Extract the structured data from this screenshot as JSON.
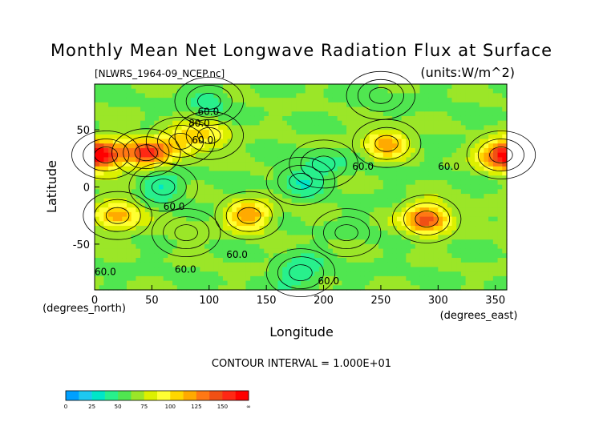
{
  "chart_data": {
    "type": "heatmap",
    "title": "Monthly Mean Net Longwave Radiation Flux at Surface",
    "source_label": "[NLWRS_1964-09_NCEP.nc]",
    "units_label": "(units:W/m^2)",
    "xlabel": "Longitude",
    "ylabel": "Latitude",
    "x_unit_label": "(degrees_east)",
    "y_unit_label": "(degrees_north)",
    "xlim": [
      0,
      360
    ],
    "ylim": [
      -90,
      90
    ],
    "x_ticks": [
      0,
      50,
      100,
      150,
      200,
      250,
      300,
      350
    ],
    "y_ticks": [
      50,
      0,
      -50
    ],
    "contour_interval_text": "CONTOUR INTERVAL = 1.000E+01",
    "contour_labels": [
      "60.0",
      "80.0",
      "60.0",
      "60.0",
      "60.0",
      "60.0",
      "60.0",
      "60.0",
      "60.0",
      "60.0"
    ],
    "colorbar": {
      "ticks": [
        "0",
        "25",
        "50",
        "75",
        "100",
        "125",
        "150",
        "∞"
      ],
      "colors": [
        "#00a0ff",
        "#1ec8f0",
        "#00e6c8",
        "#28f08c",
        "#50e650",
        "#9be628",
        "#dcf000",
        "#ffff32",
        "#ffd700",
        "#ffaa00",
        "#ff7814",
        "#f05014",
        "#ff2814",
        "#ff0000"
      ],
      "boundaries": [
        0,
        12.5,
        25,
        37.5,
        50,
        62.5,
        75,
        87.5,
        100,
        112.5,
        125,
        137.5,
        150,
        162.5
      ]
    },
    "regions": [
      {
        "lon": 10,
        "lat": 28,
        "value": 130
      },
      {
        "lon": 45,
        "lat": 30,
        "value": 145
      },
      {
        "lon": 75,
        "lat": 40,
        "value": 105
      },
      {
        "lon": 100,
        "lat": 45,
        "value": 95
      },
      {
        "lon": 20,
        "lat": -25,
        "value": 120
      },
      {
        "lon": 135,
        "lat": -25,
        "value": 125
      },
      {
        "lon": 255,
        "lat": 38,
        "value": 120
      },
      {
        "lon": 290,
        "lat": -28,
        "value": 150
      },
      {
        "lon": 355,
        "lat": 28,
        "value": 135
      },
      {
        "lon": 180,
        "lat": 5,
        "value": 40
      },
      {
        "lon": 200,
        "lat": 20,
        "value": 45
      },
      {
        "lon": 60,
        "lat": 0,
        "value": 38
      },
      {
        "lon": 220,
        "lat": -40,
        "value": 60
      },
      {
        "lon": 80,
        "lat": -40,
        "value": 70
      },
      {
        "lon": 180,
        "lat": -75,
        "value": 35
      },
      {
        "lon": 100,
        "lat": 75,
        "value": 45
      },
      {
        "lon": 250,
        "lat": 80,
        "value": 55
      }
    ],
    "background_value": 62
  }
}
